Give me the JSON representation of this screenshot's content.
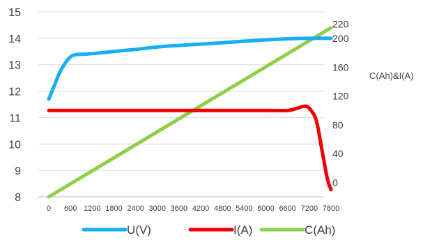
{
  "chart_data": {
    "type": "line",
    "title": "",
    "xlabel": "",
    "ylabel": "",
    "y2label": "C(Ah)&I(A)",
    "x_ticks": [
      "0",
      "600",
      "1200",
      "1800",
      "2400",
      "3000",
      "3600",
      "4200",
      "4800",
      "5400",
      "6000",
      "6600",
      "7200",
      "7800"
    ],
    "xlim": [
      0,
      7800
    ],
    "ylim": [
      8,
      15
    ],
    "y_ticks": [
      "8",
      "9",
      "10",
      "11",
      "12",
      "13",
      "14",
      "15"
    ],
    "y2lim": [
      -20,
      240
    ],
    "y2_ticks": [
      "0",
      "40",
      "80",
      "120",
      "160",
      "200",
      "220"
    ],
    "grid": true,
    "legend_position": "bottom",
    "series": [
      {
        "name": "U(V)",
        "axis": "left",
        "color": "#16aff0",
        "points": [
          [
            0,
            11.7
          ],
          [
            150,
            12.2
          ],
          [
            300,
            12.7
          ],
          [
            450,
            13.05
          ],
          [
            600,
            13.3
          ],
          [
            750,
            13.38
          ],
          [
            1000,
            13.4
          ],
          [
            1200,
            13.42
          ],
          [
            1800,
            13.5
          ],
          [
            2400,
            13.58
          ],
          [
            3000,
            13.67
          ],
          [
            3600,
            13.73
          ],
          [
            4200,
            13.78
          ],
          [
            4800,
            13.83
          ],
          [
            5400,
            13.89
          ],
          [
            6000,
            13.94
          ],
          [
            6600,
            13.98
          ],
          [
            7200,
            14.0
          ],
          [
            7800,
            14.0
          ]
        ]
      },
      {
        "name": "I(A)",
        "axis": "right",
        "color": "#f20000",
        "points": [
          [
            0,
            100
          ],
          [
            1200,
            100
          ],
          [
            2400,
            100
          ],
          [
            3600,
            100
          ],
          [
            4800,
            100
          ],
          [
            6000,
            100
          ],
          [
            6600,
            100
          ],
          [
            6850,
            103
          ],
          [
            7100,
            106
          ],
          [
            7250,
            100
          ],
          [
            7400,
            85
          ],
          [
            7550,
            45
          ],
          [
            7700,
            5
          ],
          [
            7800,
            -10
          ]
        ]
      },
      {
        "name": "C(Ah)",
        "axis": "right",
        "color": "#8ecf4a",
        "points": [
          [
            0,
            -20
          ],
          [
            7800,
            215
          ]
        ]
      }
    ]
  }
}
